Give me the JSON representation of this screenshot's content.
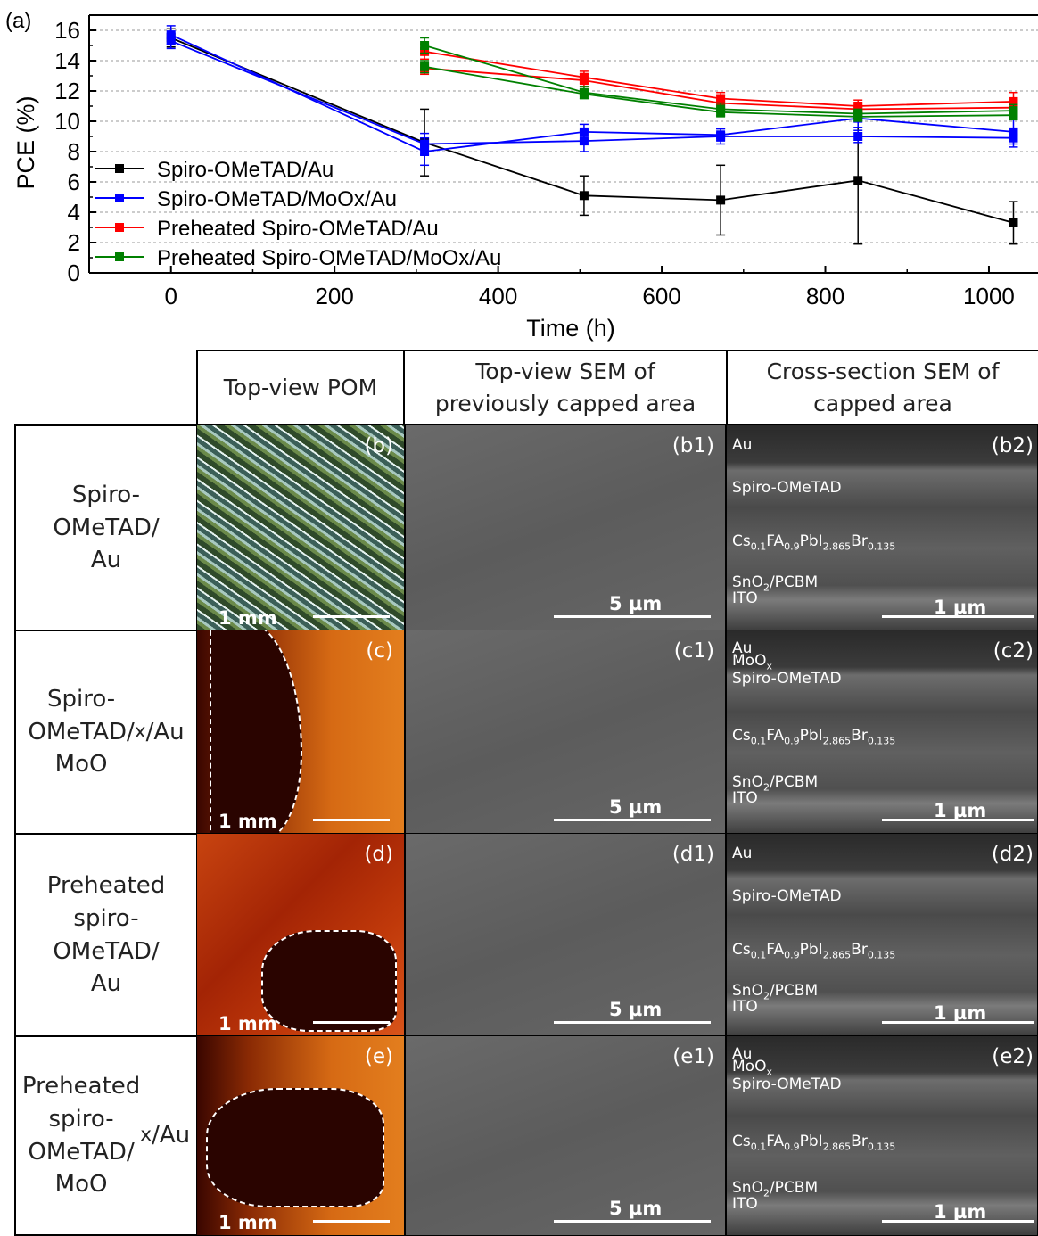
{
  "panel_a_label": "(a)",
  "chart_data": {
    "type": "line",
    "title": "",
    "xlabel": "Time (h)",
    "ylabel": "PCE (%)",
    "xlim": [
      -100,
      1060
    ],
    "ylim": [
      0,
      17
    ],
    "xticks": [
      0,
      200,
      400,
      600,
      800,
      1000
    ],
    "yticks": [
      0,
      2,
      4,
      6,
      8,
      10,
      12,
      14,
      16
    ],
    "grid": "horizontal dashed",
    "legend_position": "lower-left",
    "series": [
      {
        "name": "Spiro-OMeTAD/Au",
        "color": "#000000",
        "lines": [
          {
            "x": [
              0,
              310,
              505,
              672,
              840,
              1030
            ],
            "y": [
              15.5,
              8.6,
              5.1,
              4.8,
              6.1,
              3.3
            ],
            "err": [
              0.6,
              2.2,
              1.3,
              2.3,
              4.2,
              1.4
            ]
          }
        ]
      },
      {
        "name": "Spiro-OMeTAD/MoOx/Au",
        "color": "#0000ff",
        "lines": [
          {
            "x": [
              0,
              310,
              505,
              672,
              840,
              1030
            ],
            "y": [
              15.7,
              8.0,
              9.3,
              9.1,
              10.2,
              9.3
            ],
            "err": [
              0.6,
              0.9,
              0.5,
              0.4,
              0.6,
              0.8
            ]
          },
          {
            "x": [
              0,
              310,
              505,
              672,
              840,
              1030
            ],
            "y": [
              15.3,
              8.5,
              8.7,
              9.0,
              9.0,
              8.9
            ],
            "err": [
              0.5,
              0.7,
              0.7,
              0.5,
              0.4,
              0.6
            ]
          }
        ]
      },
      {
        "name": "Preheated Spiro-OMeTAD/Au",
        "color": "#ff0000",
        "lines": [
          {
            "x": [
              310,
              505,
              672,
              840,
              1030
            ],
            "y": [
              14.6,
              12.9,
              11.5,
              11.0,
              11.3
            ],
            "err": [
              0.5,
              0.4,
              0.4,
              0.4,
              0.6
            ]
          },
          {
            "x": [
              310,
              505,
              672,
              840,
              1030
            ],
            "y": [
              13.5,
              12.7,
              11.2,
              10.8,
              10.9
            ],
            "err": [
              0.4,
              0.4,
              0.5,
              0.4,
              0.5
            ]
          }
        ]
      },
      {
        "name": "Preheated Spiro-OMeTAD/MoOx/Au",
        "color": "#008000",
        "lines": [
          {
            "x": [
              310,
              505,
              672,
              840,
              1030
            ],
            "y": [
              15.0,
              11.9,
              10.8,
              10.5,
              10.7
            ],
            "err": [
              0.5,
              0.4,
              0.4,
              0.3,
              0.4
            ]
          },
          {
            "x": [
              310,
              505,
              672,
              840,
              1030
            ],
            "y": [
              13.6,
              11.8,
              10.6,
              10.3,
              10.4
            ],
            "err": [
              0.4,
              0.3,
              0.3,
              0.3,
              0.3
            ]
          }
        ]
      }
    ]
  },
  "headers": {
    "pom": "Top-view POM",
    "sem_top": "Top-view SEM of previously capped area",
    "sem_cross": "Cross-section SEM of capped area"
  },
  "rows": [
    {
      "label_html": "Spiro-<br>OMeTAD/<br>Au",
      "pom": "(b)",
      "top": "(b1)",
      "cross": "(b2)"
    },
    {
      "label_html": "Spiro-<br>OMeTAD/<br>MoO<sub>x</sub>/Au",
      "pom": "(c)",
      "top": "(c1)",
      "cross": "(c2)"
    },
    {
      "label_html": "Preheated<br>spiro-<br>OMeTAD/<br>Au",
      "pom": "(d)",
      "top": "(d1)",
      "cross": "(d2)"
    },
    {
      "label_html": "Preheated<br>spiro-<br>OMeTAD/<br>MoO<sub>x</sub>/Au",
      "pom": "(e)",
      "top": "(e1)",
      "cross": "(e2)"
    }
  ],
  "scalebars": {
    "pom": "1 mm",
    "sem_top": "5 µm",
    "sem_cross": "1 µm"
  },
  "layers": {
    "au": "Au",
    "moox": "MoOx",
    "spiro": "Spiro-OMeTAD",
    "perovskite": "Cs0.1FA0.9PbI2.865Br0.135",
    "sno2": "SnO2/PCBM",
    "ito": "ITO"
  }
}
